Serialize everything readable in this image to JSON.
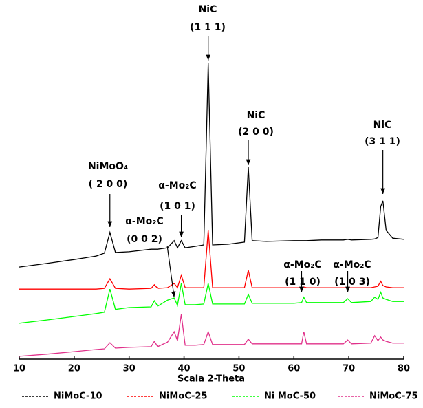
{
  "chart_data": {
    "type": "line",
    "xlabel": "Scala 2-Theta",
    "x": [
      10,
      15,
      20,
      24,
      25.5,
      26.5,
      27.5,
      30,
      34,
      34.6,
      35.2,
      37,
      38.2,
      38.8,
      39.5,
      40.2,
      42,
      43.6,
      44.4,
      45.2,
      48,
      51,
      51.7,
      52.4,
      55,
      60,
      61.4,
      61.8,
      62.3,
      65,
      69,
      69.8,
      70.5,
      74,
      74.7,
      75.3,
      75.8,
      76.2,
      76.8,
      78,
      80
    ],
    "series": [
      {
        "name": "NiMoC-10",
        "color": "#000000",
        "values": [
          25.9,
          26.9,
          28.0,
          29.0,
          29.8,
          35.6,
          30.0,
          30.2,
          30.9,
          30.9,
          30.9,
          31.3,
          33.3,
          31.3,
          33.3,
          31.3,
          31.7,
          32.1,
          83.2,
          32.1,
          32.3,
          32.9,
          54.0,
          33.3,
          33.1,
          33.3,
          33.3,
          33.3,
          33.3,
          33.5,
          33.5,
          33.7,
          33.5,
          33.7,
          33.8,
          34.2,
          42.9,
          44.5,
          36.2,
          34.0,
          33.7
        ]
      },
      {
        "name": "NiMoC-25",
        "color": "#ff0000",
        "values": [
          19.7,
          19.7,
          19.7,
          19.7,
          19.9,
          22.6,
          19.9,
          19.7,
          19.9,
          20.9,
          19.9,
          20.1,
          21.3,
          20.1,
          23.6,
          20.1,
          20.1,
          20.1,
          36.2,
          20.1,
          20.1,
          20.1,
          25.0,
          20.1,
          20.1,
          20.1,
          20.1,
          20.3,
          20.1,
          20.1,
          20.1,
          20.1,
          20.1,
          20.1,
          20.3,
          20.5,
          21.9,
          20.7,
          20.3,
          20.1,
          20.1
        ]
      },
      {
        "name": "Ni MoC-50",
        "color": "#00ff00",
        "values": [
          10.1,
          11.0,
          12.0,
          12.8,
          13.2,
          19.7,
          14.0,
          14.5,
          14.7,
          16.4,
          14.9,
          16.6,
          17.2,
          15.1,
          21.3,
          15.3,
          15.3,
          15.5,
          21.3,
          15.5,
          15.5,
          15.5,
          18.2,
          15.7,
          15.7,
          15.7,
          15.9,
          17.4,
          15.9,
          15.9,
          15.9,
          17.0,
          15.9,
          16.2,
          17.4,
          16.8,
          18.8,
          17.2,
          16.8,
          16.2,
          16.2
        ]
      },
      {
        "name": "NiMoC-75",
        "color": "#e0308a",
        "values": [
          0.8,
          1.4,
          2.1,
          2.7,
          2.9,
          4.6,
          3.1,
          3.3,
          3.5,
          5.0,
          3.5,
          4.8,
          7.7,
          5.2,
          12.6,
          3.9,
          3.9,
          4.1,
          7.7,
          4.1,
          4.1,
          4.1,
          5.6,
          4.3,
          4.3,
          4.3,
          4.3,
          7.7,
          4.3,
          4.3,
          4.3,
          5.4,
          4.3,
          4.5,
          6.6,
          5.2,
          6.2,
          5.4,
          5.0,
          4.5,
          4.5
        ]
      }
    ],
    "xlim": [
      10,
      80
    ],
    "xticks": [
      10,
      20,
      30,
      40,
      50,
      60,
      70,
      80
    ],
    "ylim": [
      0,
      100
    ],
    "annotations": [
      {
        "label": "NiMoO₄",
        "plane": "( 2 0 0)",
        "x": 26.5
      },
      {
        "label": "α-Mo₂C",
        "plane": "(1 0 1)",
        "x": 39.5
      },
      {
        "label": "NiC",
        "plane": "(1 1 1)",
        "x": 44.4
      },
      {
        "label": "NiC",
        "plane": "(2 0 0)",
        "x": 51.7
      },
      {
        "label": "NiC",
        "plane": "(3 1 1)",
        "x": 76.2
      },
      {
        "label": "α-Mo₂C",
        "plane": "(0 0 2)",
        "x": 38.2
      },
      {
        "label": "α-Mo₂C",
        "plane": "(1 1 0)",
        "x": 61.4
      },
      {
        "label": "α-Mo₂C",
        "plane": "(1 0 3)",
        "x": 69.8
      }
    ]
  }
}
